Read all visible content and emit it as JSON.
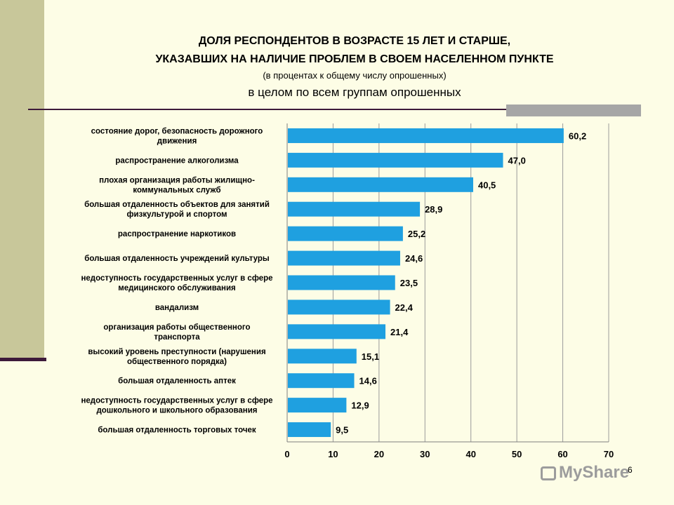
{
  "header": {
    "title_line1": "ДОЛЯ РЕСПОНДЕНТОВ В ВОЗРАСТЕ 15 ЛЕТ И СТАРШЕ,",
    "title_line2": "УКАЗАВШИХ НА НАЛИЧИЕ ПРОБЛЕМ В СВОЕМ НАСЕЛЕННОМ ПУНКТЕ",
    "subtitle": "(в процентах к общему числу опрошенных)",
    "scope": "в целом по всем группам опрошенных"
  },
  "page_number": "6",
  "watermark": "MyShare",
  "colors": {
    "bar": "#1fa0e0",
    "accent_line": "#3d1a3a",
    "side_band": "#c8c79a",
    "background": "#fdfde6"
  },
  "chart_data": {
    "type": "bar",
    "orientation": "horizontal",
    "categories": [
      [
        "состояние дорог, безопасность дорожного",
        "движения"
      ],
      [
        "распространение алкоголизма"
      ],
      [
        "плохая организация работы жилищно-",
        "коммунальных служб"
      ],
      [
        "большая отдаленность объектов для занятий",
        "физкультурой и спортом"
      ],
      [
        "распространение наркотиков"
      ],
      [
        "большая  отдаленность учреждений культуры"
      ],
      [
        "недоступность государственных услуг в сфере",
        "медицинского обслуживания"
      ],
      [
        "вандализм"
      ],
      [
        "организация  работы общественного",
        "транспорта"
      ],
      [
        "высокий уровень преступности (нарушения",
        "общественного порядка)"
      ],
      [
        "большая отдаленность аптек"
      ],
      [
        "недоступность государственных услуг в сфере",
        "дошкольного и школьного образования"
      ],
      [
        "большая отдаленность торговых точек"
      ]
    ],
    "values": [
      60.2,
      47.0,
      40.5,
      28.9,
      25.2,
      24.6,
      23.5,
      22.4,
      21.4,
      15.1,
      14.6,
      12.9,
      9.5
    ],
    "value_labels": [
      "60,2",
      "47,0",
      "40,5",
      "28,9",
      "25,2",
      "24,6",
      "23,5",
      "22,4",
      "21,4",
      "15,1",
      "14,6",
      "12,9",
      "9,5"
    ],
    "xlim": [
      0,
      70
    ],
    "xticks": [
      "0",
      "10",
      "20",
      "30",
      "40",
      "50",
      "60",
      "70"
    ],
    "grid": true
  }
}
